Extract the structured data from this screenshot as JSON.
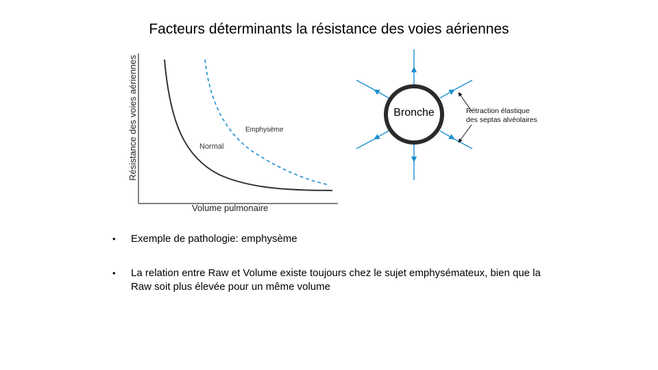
{
  "slide": {
    "title": "Facteurs déterminants la résistance des voies aériennes"
  },
  "graph": {
    "y_axis_label": "Résistance des voies aériennes",
    "x_axis_label": "Volume pulmonaire",
    "curve_normal_label": "Normal",
    "curve_emphysema_label": "Emphysème",
    "colors": {
      "normal": "#333333",
      "emphysema": "#1a8fce",
      "axis": "#555555"
    }
  },
  "diagram": {
    "bronche_label": "Bronche",
    "retraction_line1": "Rétraction élastique",
    "retraction_line2": "des septas alvéolaires",
    "arrow_color": "#1a8fce"
  },
  "bullets": [
    {
      "marker": "•",
      "text": "Exemple de pathologie: emphysème"
    },
    {
      "marker": "•",
      "text": "La relation entre Raw et Volume existe toujours chez le sujet emphysémateux, bien que la Raw soit plus élevée pour un même volume"
    }
  ]
}
